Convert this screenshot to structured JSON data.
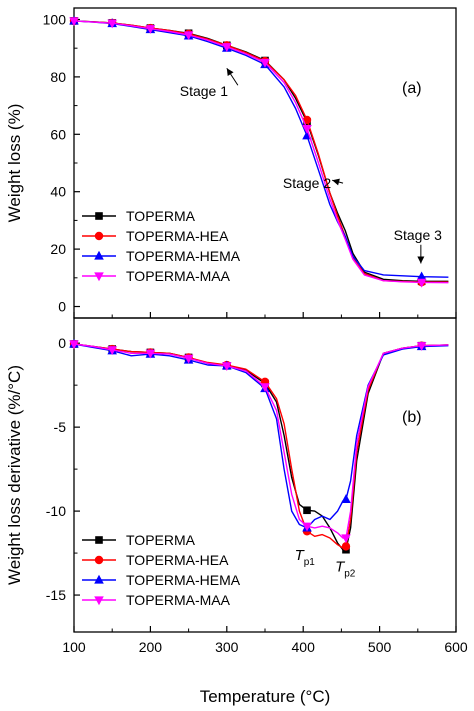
{
  "chart_data": [
    {
      "type": "line",
      "panel_label": "(a)",
      "ylabel": "Weight loss (%)",
      "xlim": [
        100,
        600
      ],
      "ylim": [
        -4,
        104
      ],
      "yticks": [
        "0",
        "20",
        "40",
        "60",
        "80",
        "100"
      ],
      "xticks": [
        "100",
        "200",
        "300",
        "400",
        "500",
        "600"
      ],
      "xlabel": "",
      "grid": false,
      "legend_position": "lower-left",
      "colors": {
        "TOPERMA": "#000000",
        "TOPERMA-HEA": "#ff0000",
        "TOPERMA-HEMA": "#0000ff",
        "TOPERMA-MAA": "#ff00ff"
      },
      "series": [
        {
          "name": "TOPERMA",
          "marker": "square",
          "x": [
            100,
            125,
            150,
            175,
            200,
            225,
            250,
            275,
            300,
            325,
            350,
            375,
            390,
            405,
            420,
            435,
            445,
            455,
            465,
            480,
            505,
            530,
            555,
            590
          ],
          "y": [
            99.5,
            99.2,
            98.8,
            98.0,
            97.0,
            96.2,
            95.2,
            93.4,
            91.0,
            88.7,
            85.7,
            79.0,
            72.5,
            64.3,
            52.5,
            39.5,
            32.5,
            26.5,
            18.5,
            12.0,
            9.5,
            9.0,
            8.8,
            8.8
          ]
        },
        {
          "name": "TOPERMA-HEA",
          "marker": "circle",
          "x": [
            100,
            125,
            150,
            175,
            200,
            225,
            250,
            275,
            300,
            325,
            350,
            375,
            390,
            405,
            420,
            435,
            445,
            455,
            465,
            480,
            505,
            530,
            555,
            590
          ],
          "y": [
            99.5,
            99.2,
            98.8,
            98.0,
            97.0,
            96.2,
            95.0,
            93.2,
            91.0,
            88.5,
            85.5,
            79.0,
            73.5,
            65.0,
            53.0,
            39.5,
            31.5,
            24.5,
            17.0,
            11.5,
            9.0,
            8.7,
            8.5,
            8.5
          ]
        },
        {
          "name": "TOPERMA-HEMA",
          "marker": "triangle-up",
          "x": [
            100,
            125,
            150,
            175,
            200,
            225,
            250,
            275,
            300,
            325,
            350,
            375,
            390,
            405,
            420,
            435,
            445,
            455,
            465,
            480,
            505,
            530,
            555,
            590
          ],
          "y": [
            99.5,
            99.1,
            98.6,
            97.6,
            96.5,
            95.4,
            94.3,
            92.3,
            90.0,
            87.5,
            84.3,
            76.5,
            69.0,
            59.5,
            47.5,
            35.5,
            29.5,
            24.5,
            17.5,
            12.5,
            11.0,
            10.7,
            10.4,
            10.2
          ]
        },
        {
          "name": "TOPERMA-MAA",
          "marker": "triangle-down",
          "x": [
            100,
            125,
            150,
            175,
            200,
            225,
            250,
            275,
            300,
            325,
            350,
            375,
            390,
            405,
            420,
            435,
            445,
            455,
            465,
            480,
            505,
            530,
            555,
            590
          ],
          "y": [
            99.5,
            99.1,
            98.7,
            97.8,
            96.8,
            95.8,
            94.6,
            92.8,
            90.5,
            88.0,
            85.0,
            78.0,
            71.0,
            62.0,
            50.0,
            37.5,
            30.0,
            23.5,
            16.5,
            11.0,
            9.0,
            8.6,
            8.4,
            8.3
          ]
        }
      ],
      "annotations": [
        {
          "text": "Stage 1",
          "x": 270,
          "y": 75,
          "arrow_to": [
            300,
            83
          ]
        },
        {
          "text": "Stage 2",
          "x": 405,
          "y": 43,
          "arrow_to": [
            438,
            44
          ]
        },
        {
          "text": "Stage 3",
          "x": 550,
          "y": 25,
          "arrow_to": [
            554,
            15
          ]
        }
      ]
    },
    {
      "type": "line",
      "panel_label": "(b)",
      "ylabel": "Weight loss derivative (%/°C)",
      "xlabel": "Temperature (°C)",
      "xlim": [
        100,
        600
      ],
      "ylim": [
        -17.2,
        1.5
      ],
      "yticks": [
        "0",
        "-5",
        "-10",
        "-15"
      ],
      "xticks": [
        "100",
        "200",
        "300",
        "400",
        "500",
        "600"
      ],
      "grid": false,
      "legend_position": "lower-left",
      "colors": {
        "TOPERMA": "#000000",
        "TOPERMA-HEA": "#ff0000",
        "TOPERMA-HEMA": "#0000ff",
        "TOPERMA-MAA": "#ff00ff"
      },
      "series": [
        {
          "name": "TOPERMA",
          "marker": "square",
          "x": [
            100,
            125,
            150,
            175,
            200,
            225,
            250,
            275,
            300,
            325,
            350,
            365,
            375,
            385,
            395,
            405,
            415,
            425,
            435,
            445,
            452,
            456,
            462,
            470,
            485,
            505,
            530,
            555,
            590
          ],
          "y": [
            -0.05,
            -0.2,
            -0.35,
            -0.5,
            -0.55,
            -0.6,
            -0.85,
            -1.2,
            -1.35,
            -1.6,
            -2.4,
            -3.5,
            -5.5,
            -8.0,
            -9.6,
            -9.95,
            -10.0,
            -10.3,
            -11.0,
            -11.9,
            -12.3,
            -12.3,
            -11.0,
            -7.0,
            -3.0,
            -0.6,
            -0.3,
            -0.15,
            -0.1
          ]
        },
        {
          "name": "TOPERMA-HEA",
          "marker": "circle",
          "x": [
            100,
            125,
            150,
            175,
            200,
            225,
            250,
            275,
            300,
            325,
            350,
            365,
            375,
            385,
            395,
            405,
            415,
            425,
            435,
            445,
            452,
            456,
            462,
            470,
            485,
            505,
            530,
            555,
            590
          ],
          "y": [
            -0.05,
            -0.2,
            -0.35,
            -0.5,
            -0.55,
            -0.6,
            -0.85,
            -1.15,
            -1.3,
            -1.55,
            -2.3,
            -3.3,
            -4.8,
            -7.5,
            -10.0,
            -11.2,
            -11.5,
            -11.4,
            -11.6,
            -12.0,
            -12.2,
            -12.1,
            -10.5,
            -6.5,
            -2.8,
            -0.6,
            -0.3,
            -0.15,
            -0.1
          ]
        },
        {
          "name": "TOPERMA-HEMA",
          "marker": "triangle-up",
          "x": [
            100,
            125,
            150,
            175,
            200,
            225,
            250,
            275,
            300,
            325,
            350,
            365,
            375,
            385,
            395,
            405,
            415,
            425,
            435,
            445,
            452,
            456,
            462,
            470,
            485,
            505,
            530,
            555,
            590
          ],
          "y": [
            -0.05,
            -0.25,
            -0.45,
            -0.75,
            -0.65,
            -0.75,
            -1.0,
            -1.3,
            -1.35,
            -1.75,
            -2.7,
            -4.5,
            -7.5,
            -10.0,
            -10.8,
            -11.0,
            -10.5,
            -10.3,
            -10.5,
            -10.0,
            -9.4,
            -9.3,
            -8.2,
            -5.5,
            -2.5,
            -0.7,
            -0.35,
            -0.2,
            -0.15
          ]
        },
        {
          "name": "TOPERMA-MAA",
          "marker": "triangle-down",
          "x": [
            100,
            125,
            150,
            175,
            200,
            225,
            250,
            275,
            300,
            325,
            350,
            365,
            375,
            385,
            395,
            405,
            415,
            425,
            435,
            445,
            452,
            456,
            462,
            470,
            485,
            505,
            530,
            555,
            590
          ],
          "y": [
            -0.05,
            -0.2,
            -0.4,
            -0.6,
            -0.6,
            -0.65,
            -0.9,
            -1.2,
            -1.35,
            -1.65,
            -2.6,
            -4.0,
            -6.5,
            -9.0,
            -10.5,
            -10.9,
            -11.0,
            -10.9,
            -11.0,
            -11.3,
            -11.6,
            -11.6,
            -10.0,
            -6.0,
            -2.6,
            -0.6,
            -0.3,
            -0.15,
            -0.1
          ]
        }
      ],
      "annotations": [
        {
          "text": "T",
          "subscript": "p1",
          "x": 402,
          "y": -12.9
        },
        {
          "text": "T",
          "subscript": "p2",
          "x": 455,
          "y": -13.6
        }
      ]
    }
  ]
}
